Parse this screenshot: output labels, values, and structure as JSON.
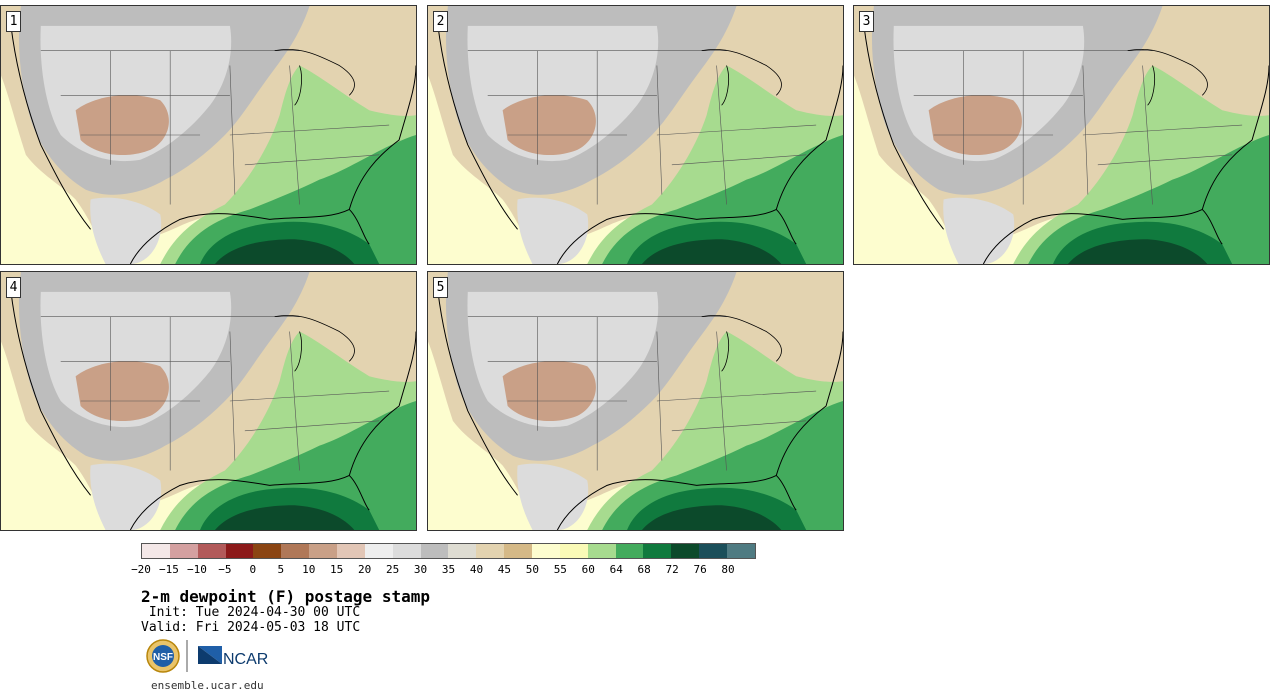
{
  "panels": [
    {
      "label": "1"
    },
    {
      "label": "2"
    },
    {
      "label": "3"
    },
    {
      "label": "4"
    },
    {
      "label": "5"
    }
  ],
  "colorbar": {
    "colors": [
      "#f4e8e8",
      "#d4a0a0",
      "#b25a5a",
      "#8c1a1a",
      "#8b4513",
      "#b07858",
      "#c9a087",
      "#e2c6b6",
      "#eeeeee",
      "#dcdcdc",
      "#bdbdbd",
      "#dedcd2",
      "#e3d3b0",
      "#d5b987",
      "#fdfdcf",
      "#fafab7",
      "#a7db8f",
      "#43ab5d",
      "#107a3e",
      "#0c4a2b",
      "#1b4f5a",
      "#4f7b82"
    ],
    "ticks": [
      "−20",
      "−15",
      "−10",
      "−5",
      "0",
      "5",
      "10",
      "15",
      "20",
      "25",
      "30",
      "35",
      "40",
      "45",
      "50",
      "55",
      "60",
      "64",
      "68",
      "72",
      "76",
      "80"
    ]
  },
  "title": "2-m dewpoint (F) postage stamp",
  "init_line": " Init: Tue 2024-04-30 00 UTC",
  "valid_line": "Valid: Fri 2024-05-03 18 UTC",
  "logos": {
    "left": "NSF",
    "right": "NCAR"
  },
  "url": "ensemble.ucar.edu"
}
